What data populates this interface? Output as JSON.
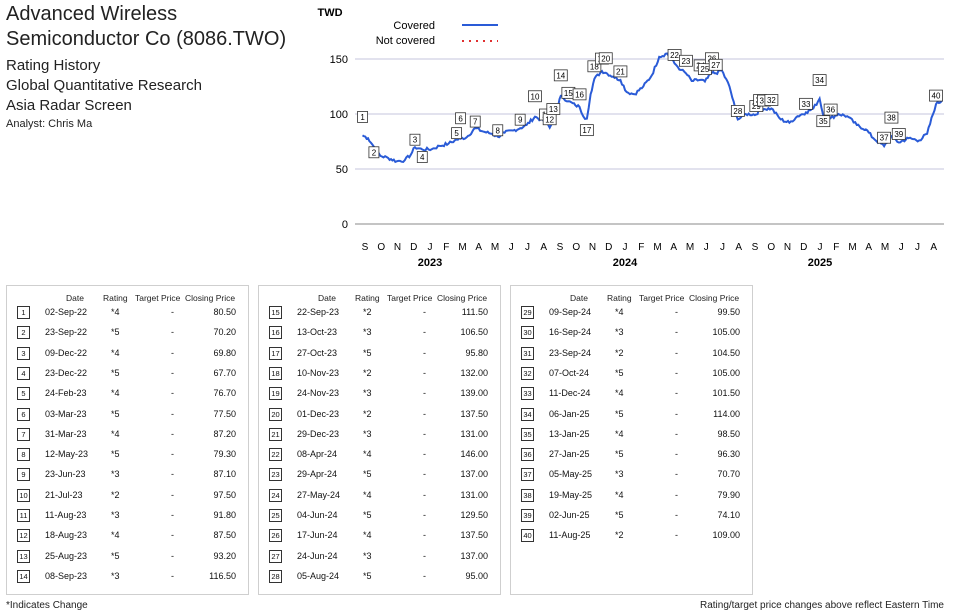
{
  "header": {
    "company": "Advanced Wireless Semiconductor Co (8086.TWO)",
    "title": "Rating History",
    "research": "Global Quantitative Research",
    "screen": "Asia Radar Screen",
    "analyst": "Analyst: Chris Ma"
  },
  "table_headers": {
    "date": "Date",
    "rating": "Rating",
    "target": "Target Price",
    "close": "Closing Price"
  },
  "ratings": [
    {
      "n": "1",
      "date": "02-Sep-22",
      "rating": "*4",
      "target": "-",
      "close": "80.50"
    },
    {
      "n": "2",
      "date": "23-Sep-22",
      "rating": "*5",
      "target": "-",
      "close": "70.20"
    },
    {
      "n": "3",
      "date": "09-Dec-22",
      "rating": "*4",
      "target": "-",
      "close": "69.80"
    },
    {
      "n": "4",
      "date": "23-Dec-22",
      "rating": "*5",
      "target": "-",
      "close": "67.70"
    },
    {
      "n": "5",
      "date": "24-Feb-23",
      "rating": "*4",
      "target": "-",
      "close": "76.70"
    },
    {
      "n": "6",
      "date": "03-Mar-23",
      "rating": "*5",
      "target": "-",
      "close": "77.50"
    },
    {
      "n": "7",
      "date": "31-Mar-23",
      "rating": "*4",
      "target": "-",
      "close": "87.20"
    },
    {
      "n": "8",
      "date": "12-May-23",
      "rating": "*5",
      "target": "-",
      "close": "79.30"
    },
    {
      "n": "9",
      "date": "23-Jun-23",
      "rating": "*3",
      "target": "-",
      "close": "87.10"
    },
    {
      "n": "10",
      "date": "21-Jul-23",
      "rating": "*2",
      "target": "-",
      "close": "97.50"
    },
    {
      "n": "11",
      "date": "11-Aug-23",
      "rating": "*3",
      "target": "-",
      "close": "91.80"
    },
    {
      "n": "12",
      "date": "18-Aug-23",
      "rating": "*4",
      "target": "-",
      "close": "87.50"
    },
    {
      "n": "13",
      "date": "25-Aug-23",
      "rating": "*5",
      "target": "-",
      "close": "93.20"
    },
    {
      "n": "14",
      "date": "08-Sep-23",
      "rating": "*3",
      "target": "-",
      "close": "116.50"
    },
    {
      "n": "15",
      "date": "22-Sep-23",
      "rating": "*2",
      "target": "-",
      "close": "111.50"
    },
    {
      "n": "16",
      "date": "13-Oct-23",
      "rating": "*3",
      "target": "-",
      "close": "106.50"
    },
    {
      "n": "17",
      "date": "27-Oct-23",
      "rating": "*5",
      "target": "-",
      "close": "95.80"
    },
    {
      "n": "18",
      "date": "10-Nov-23",
      "rating": "*2",
      "target": "-",
      "close": "132.00"
    },
    {
      "n": "19",
      "date": "24-Nov-23",
      "rating": "*3",
      "target": "-",
      "close": "139.00"
    },
    {
      "n": "20",
      "date": "01-Dec-23",
      "rating": "*2",
      "target": "-",
      "close": "137.50"
    },
    {
      "n": "21",
      "date": "29-Dec-23",
      "rating": "*3",
      "target": "-",
      "close": "131.00"
    },
    {
      "n": "22",
      "date": "08-Apr-24",
      "rating": "*4",
      "target": "-",
      "close": "146.00"
    },
    {
      "n": "23",
      "date": "29-Apr-24",
      "rating": "*5",
      "target": "-",
      "close": "137.00"
    },
    {
      "n": "24",
      "date": "27-May-24",
      "rating": "*4",
      "target": "-",
      "close": "131.00"
    },
    {
      "n": "25",
      "date": "04-Jun-24",
      "rating": "*5",
      "target": "-",
      "close": "129.50"
    },
    {
      "n": "26",
      "date": "17-Jun-24",
      "rating": "*4",
      "target": "-",
      "close": "137.50"
    },
    {
      "n": "27",
      "date": "24-Jun-24",
      "rating": "*3",
      "target": "-",
      "close": "137.00"
    },
    {
      "n": "28",
      "date": "05-Aug-24",
      "rating": "*5",
      "target": "-",
      "close": "95.00"
    },
    {
      "n": "29",
      "date": "09-Sep-24",
      "rating": "*4",
      "target": "-",
      "close": "99.50"
    },
    {
      "n": "30",
      "date": "16-Sep-24",
      "rating": "*3",
      "target": "-",
      "close": "105.00"
    },
    {
      "n": "31",
      "date": "23-Sep-24",
      "rating": "*2",
      "target": "-",
      "close": "104.50"
    },
    {
      "n": "32",
      "date": "07-Oct-24",
      "rating": "*5",
      "target": "-",
      "close": "105.00"
    },
    {
      "n": "33",
      "date": "11-Dec-24",
      "rating": "*4",
      "target": "-",
      "close": "101.50"
    },
    {
      "n": "34",
      "date": "06-Jan-25",
      "rating": "*5",
      "target": "-",
      "close": "114.00"
    },
    {
      "n": "35",
      "date": "13-Jan-25",
      "rating": "*4",
      "target": "-",
      "close": "98.50"
    },
    {
      "n": "36",
      "date": "27-Jan-25",
      "rating": "*5",
      "target": "-",
      "close": "96.30"
    },
    {
      "n": "37",
      "date": "05-May-25",
      "rating": "*3",
      "target": "-",
      "close": "70.70"
    },
    {
      "n": "38",
      "date": "19-May-25",
      "rating": "*4",
      "target": "-",
      "close": "79.90"
    },
    {
      "n": "39",
      "date": "02-Jun-25",
      "rating": "*5",
      "target": "-",
      "close": "74.10"
    },
    {
      "n": "40",
      "date": "11-Aug-25",
      "rating": "*2",
      "target": "-",
      "close": "109.00"
    }
  ],
  "footer": {
    "left": "*Indicates Change",
    "right": "Rating/target price changes above reflect Eastern Time"
  },
  "chart_data": {
    "type": "line",
    "ylabel": "TWD",
    "ylim": [
      0,
      160
    ],
    "yticks": [
      0,
      50,
      100,
      150
    ],
    "grid": "horizontal",
    "legend": {
      "placement": "top-left",
      "entries": [
        "Covered",
        "Not covered"
      ]
    },
    "series": [
      {
        "name": "Covered",
        "color": "#2a5bd7",
        "points": [
          [
            "2022-09-02",
            80.5
          ],
          [
            "2022-09-12",
            78
          ],
          [
            "2022-09-23",
            70.2
          ],
          [
            "2022-10-05",
            62
          ],
          [
            "2022-10-20",
            60
          ],
          [
            "2022-11-05",
            57
          ],
          [
            "2022-11-20",
            58
          ],
          [
            "2022-12-01",
            63
          ],
          [
            "2022-12-09",
            69.8
          ],
          [
            "2022-12-23",
            67.7
          ],
          [
            "2023-01-10",
            68
          ],
          [
            "2023-01-25",
            71
          ],
          [
            "2023-02-10",
            73
          ],
          [
            "2023-02-24",
            76.7
          ],
          [
            "2023-03-03",
            77.5
          ],
          [
            "2023-03-15",
            79
          ],
          [
            "2023-03-31",
            87.2
          ],
          [
            "2023-04-15",
            84
          ],
          [
            "2023-05-01",
            82
          ],
          [
            "2023-05-12",
            79.3
          ],
          [
            "2023-05-25",
            83
          ],
          [
            "2023-06-10",
            85
          ],
          [
            "2023-06-23",
            87.1
          ],
          [
            "2023-07-05",
            90
          ],
          [
            "2023-07-21",
            97.5
          ],
          [
            "2023-08-01",
            95
          ],
          [
            "2023-08-11",
            91.8
          ],
          [
            "2023-08-18",
            87.5
          ],
          [
            "2023-08-25",
            93.2
          ],
          [
            "2023-09-01",
            105
          ],
          [
            "2023-09-08",
            116.5
          ],
          [
            "2023-09-22",
            111.5
          ],
          [
            "2023-10-05",
            108
          ],
          [
            "2023-10-13",
            106.5
          ],
          [
            "2023-10-20",
            98
          ],
          [
            "2023-10-27",
            95.8
          ],
          [
            "2023-11-03",
            118
          ],
          [
            "2023-11-10",
            132
          ],
          [
            "2023-11-24",
            139
          ],
          [
            "2023-12-01",
            137.5
          ],
          [
            "2023-12-15",
            134
          ],
          [
            "2023-12-29",
            131
          ],
          [
            "2024-01-10",
            120
          ],
          [
            "2024-01-25",
            118
          ],
          [
            "2024-02-10",
            125
          ],
          [
            "2024-02-25",
            135
          ],
          [
            "2024-03-10",
            152
          ],
          [
            "2024-03-25",
            155
          ],
          [
            "2024-04-08",
            146
          ],
          [
            "2024-04-20",
            140
          ],
          [
            "2024-04-29",
            137
          ],
          [
            "2024-05-10",
            130
          ],
          [
            "2024-05-27",
            131
          ],
          [
            "2024-06-04",
            129.5
          ],
          [
            "2024-06-17",
            137.5
          ],
          [
            "2024-06-24",
            137
          ],
          [
            "2024-07-05",
            140
          ],
          [
            "2024-07-20",
            125
          ],
          [
            "2024-08-05",
            95
          ],
          [
            "2024-08-20",
            100
          ],
          [
            "2024-09-09",
            99.5
          ],
          [
            "2024-09-16",
            105
          ],
          [
            "2024-09-23",
            104.5
          ],
          [
            "2024-10-07",
            105
          ],
          [
            "2024-10-25",
            95
          ],
          [
            "2024-11-10",
            92
          ],
          [
            "2024-11-25",
            98
          ],
          [
            "2024-12-11",
            101.5
          ],
          [
            "2024-12-25",
            105
          ],
          [
            "2025-01-06",
            114
          ],
          [
            "2025-01-13",
            98.5
          ],
          [
            "2025-01-27",
            96.3
          ],
          [
            "2025-02-10",
            100
          ],
          [
            "2025-02-25",
            98
          ],
          [
            "2025-03-15",
            90
          ],
          [
            "2025-04-01",
            86
          ],
          [
            "2025-04-15",
            78
          ],
          [
            "2025-05-05",
            70.7
          ],
          [
            "2025-05-19",
            79.9
          ],
          [
            "2025-06-02",
            74.1
          ],
          [
            "2025-06-20",
            78
          ],
          [
            "2025-07-10",
            76
          ],
          [
            "2025-07-25",
            82
          ],
          [
            "2025-08-11",
            109
          ],
          [
            "2025-08-22",
            112
          ]
        ]
      },
      {
        "name": "Not covered",
        "color": "#e03030",
        "points": []
      }
    ],
    "xaxis": {
      "month_labels": [
        "S",
        "O",
        "N",
        "D",
        "J",
        "F",
        "M",
        "A",
        "M",
        "J",
        "J",
        "A",
        "S",
        "O",
        "N",
        "D",
        "J",
        "F",
        "M",
        "A",
        "M",
        "J",
        "J",
        "A",
        "S",
        "O",
        "N",
        "D",
        "J",
        "F",
        "M",
        "A",
        "M",
        "J",
        "J",
        "A"
      ],
      "start_month": "2022-09",
      "year_labels": [
        "2023",
        "2024",
        "2025"
      ]
    }
  }
}
